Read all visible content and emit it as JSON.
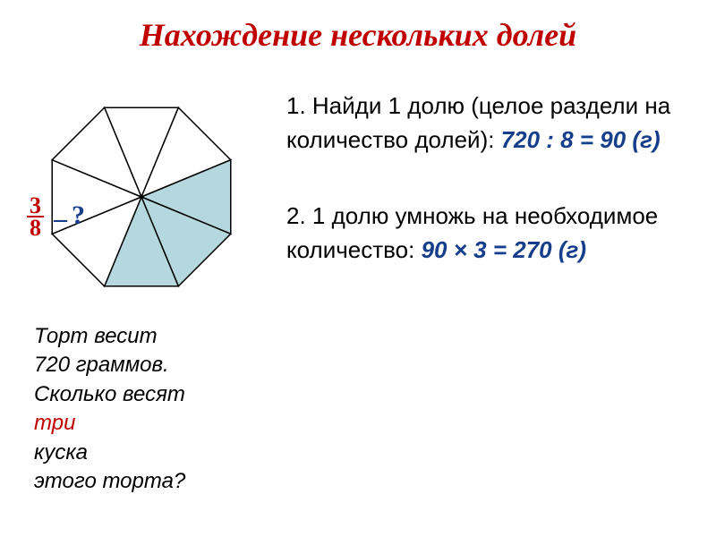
{
  "title": {
    "text": "Нахождение  нескольких  долей",
    "color": "#c00000",
    "fontsize": 36
  },
  "octagon": {
    "fill_highlighted": "#b5d8de",
    "fill_plain": "#ffffff",
    "stroke": "#000000",
    "stroke_width": 1.5,
    "highlighted_slices": [
      2,
      3,
      4
    ],
    "total_slices": 8
  },
  "fraction": {
    "numerator": "3",
    "denominator": "8",
    "color": "#c00000",
    "fontsize": 26
  },
  "question": {
    "dash": "–",
    "mark": "?",
    "color": "#163e8b",
    "fontsize": 30
  },
  "problem": {
    "color": "#000000",
    "fontsize": 24,
    "lines": [
      "Торт  весит",
      "720  граммов.",
      "Сколько  весят",
      " три  куска",
      "этого  торта?"
    ],
    "highlight_word": "три",
    "highlight_color": "#c00000"
  },
  "steps": {
    "fontsize": 26,
    "color_text": "#000000",
    "color_calc": "#163e8b",
    "items": [
      {
        "num": "1.",
        "text": "Найди  1  долю (целое раздели  на  количество  долей):",
        "calc": "720 : 8 = 90 (г)"
      },
      {
        "num": "2.",
        "text": "1  долю  умножь  на необходимое количество:",
        "calc": "90 × 3 = 270 (г)"
      }
    ]
  }
}
